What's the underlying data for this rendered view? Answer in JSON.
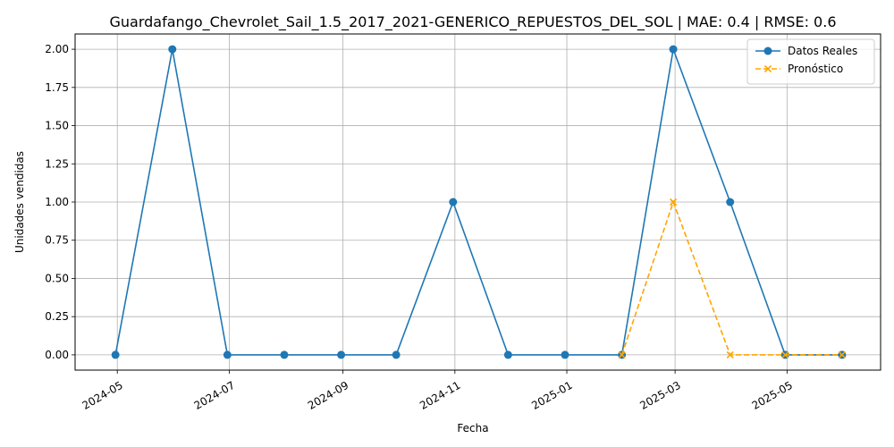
{
  "chart_data": {
    "type": "line",
    "title": "Guardafango_Chevrolet_Sail_1.5_2017_2021-GENERICO_REPUESTOS_DEL_SOL | MAE: 0.4 | RMSE: 0.6",
    "xlabel": "Fecha",
    "ylabel": "Unidades vendidas",
    "xlim": [
      "2024-04-08",
      "2025-06-21"
    ],
    "ylim": [
      -0.1,
      2.1
    ],
    "grid": true,
    "legend_position": "top-right",
    "x_ticks": [
      "2024-05",
      "2024-07",
      "2024-09",
      "2024-11",
      "2025-01",
      "2025-03",
      "2025-05"
    ],
    "y_ticks": [
      "0.00",
      "0.25",
      "0.50",
      "0.75",
      "1.00",
      "1.25",
      "1.50",
      "1.75",
      "2.00"
    ],
    "series": [
      {
        "name": "Datos Reales",
        "color": "#1f77b4",
        "line_style": "solid",
        "marker": "circle",
        "points": [
          {
            "x": "2024-04-30",
            "y": 0
          },
          {
            "x": "2024-05-31",
            "y": 2
          },
          {
            "x": "2024-06-30",
            "y": 0
          },
          {
            "x": "2024-07-31",
            "y": 0
          },
          {
            "x": "2024-08-31",
            "y": 0
          },
          {
            "x": "2024-09-30",
            "y": 0
          },
          {
            "x": "2024-10-31",
            "y": 1
          },
          {
            "x": "2024-11-30",
            "y": 0
          },
          {
            "x": "2024-12-31",
            "y": 0
          },
          {
            "x": "2025-01-31",
            "y": 0
          },
          {
            "x": "2025-02-28",
            "y": 2
          },
          {
            "x": "2025-03-31",
            "y": 1
          },
          {
            "x": "2025-04-30",
            "y": 0
          },
          {
            "x": "2025-05-31",
            "y": 0
          }
        ]
      },
      {
        "name": "Pronóstico",
        "color": "#ffa500",
        "line_style": "dashed",
        "marker": "x",
        "points": [
          {
            "x": "2025-01-31",
            "y": 0
          },
          {
            "x": "2025-02-28",
            "y": 1
          },
          {
            "x": "2025-03-31",
            "y": 0
          },
          {
            "x": "2025-04-30",
            "y": 0
          },
          {
            "x": "2025-05-31",
            "y": 0
          }
        ]
      }
    ]
  }
}
